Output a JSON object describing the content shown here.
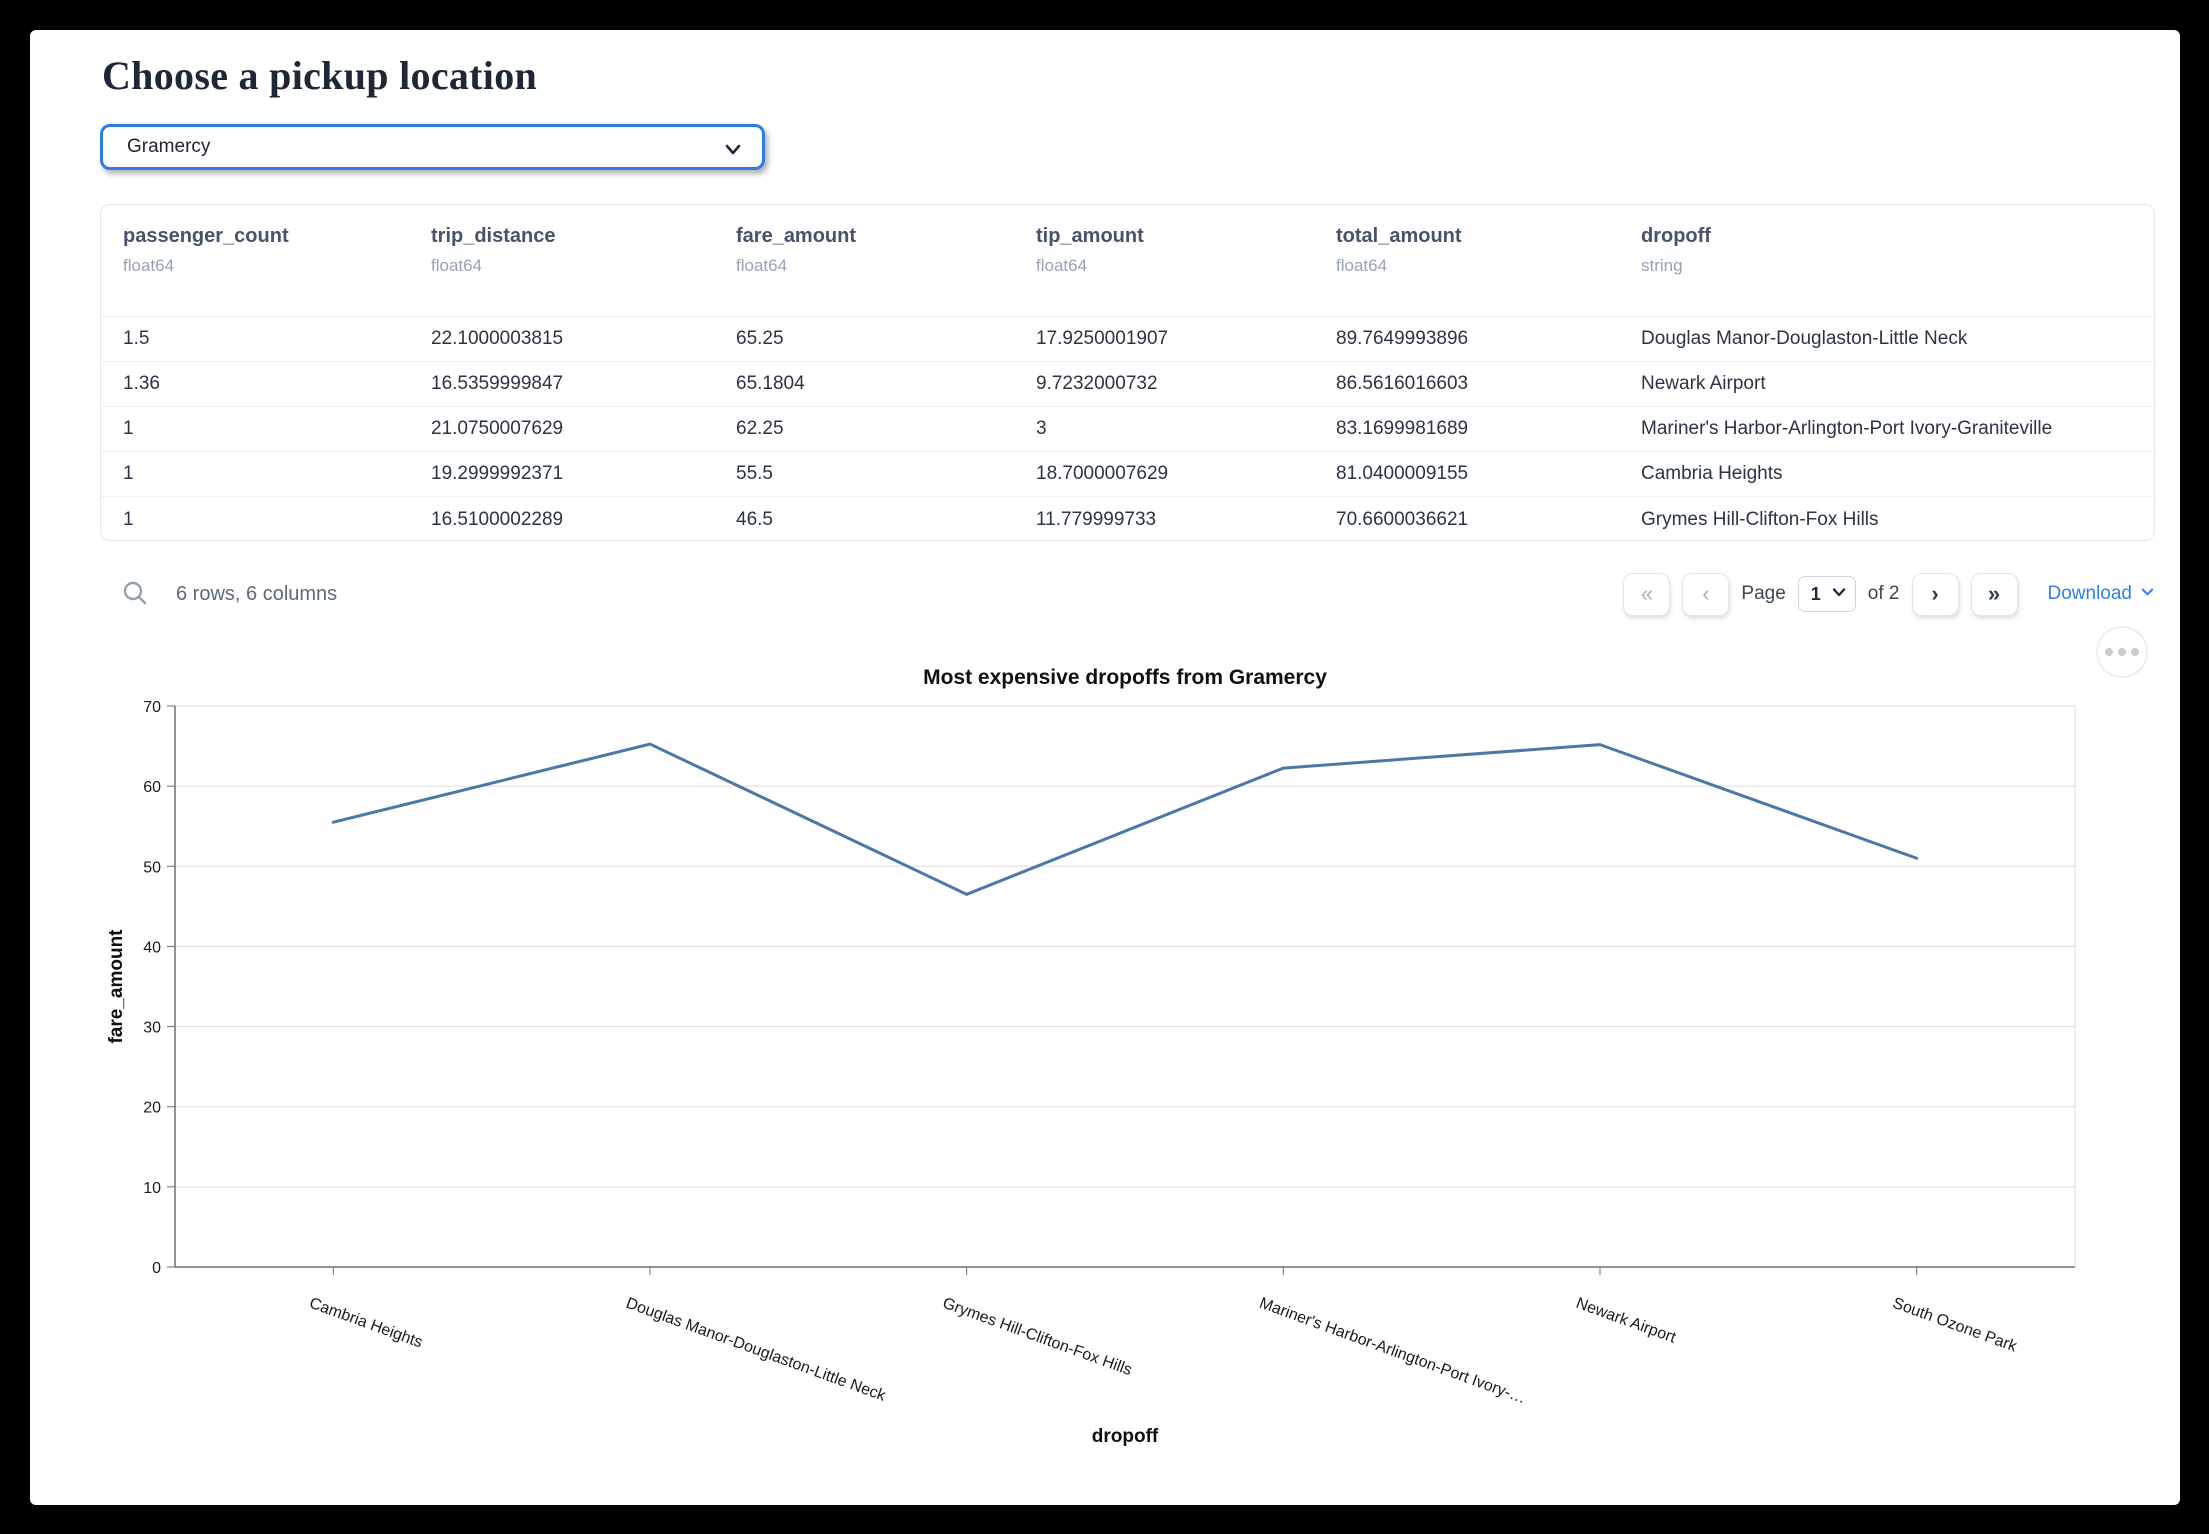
{
  "page": {
    "title": "Choose a pickup location"
  },
  "picker": {
    "value": "Gramercy"
  },
  "colors": {
    "accent_border": "#2e7ce8",
    "link_blue": "#2e7ff0",
    "line_color": "#4c78a8"
  },
  "icons": {
    "search": "magnifier",
    "select_chevron": "chevron-down",
    "first_page_glyph": "«",
    "prev_page_glyph": "‹",
    "next_page_glyph": "›",
    "last_page_glyph": "»",
    "download_chevron": "chevron-down",
    "chart_menu": "ellipsis"
  },
  "table": {
    "columns": [
      {
        "name": "passenger_count",
        "dtype": "float64"
      },
      {
        "name": "trip_distance",
        "dtype": "float64"
      },
      {
        "name": "fare_amount",
        "dtype": "float64"
      },
      {
        "name": "tip_amount",
        "dtype": "float64"
      },
      {
        "name": "total_amount",
        "dtype": "float64"
      },
      {
        "name": "dropoff",
        "dtype": "string"
      }
    ],
    "rows": [
      [
        "1.5",
        "22.1000003815",
        "65.25",
        "17.9250001907",
        "89.7649993896",
        "Douglas Manor-Douglaston-Little Neck"
      ],
      [
        "1.36",
        "16.5359999847",
        "65.1804",
        "9.7232000732",
        "86.5616016603",
        "Newark Airport"
      ],
      [
        "1",
        "21.0750007629",
        "62.25",
        "3",
        "83.1699981689",
        "Mariner's Harbor-Arlington-Port Ivory-Graniteville"
      ],
      [
        "1",
        "19.2999992371",
        "55.5",
        "18.7000007629",
        "81.0400009155",
        "Cambria Heights"
      ],
      [
        "1",
        "16.5100002289",
        "46.5",
        "11.779999733",
        "70.6600036621",
        "Grymes Hill-Clifton-Fox Hills"
      ]
    ],
    "footer": {
      "summary": "6 rows, 6 columns",
      "page_label": "Page",
      "page_value": "1",
      "of_label": "of 2",
      "download_label": "Download"
    }
  },
  "chart_data": {
    "type": "line",
    "title": "Most expensive dropoffs from Gramercy",
    "xlabel": "dropoff",
    "ylabel": "fare_amount",
    "categories": [
      "Cambria Heights",
      "Douglas Manor-Douglaston-Little Neck",
      "Grymes Hill-Clifton-Fox Hills",
      "Mariner's Harbor-Arlington-Port Ivory-Graniteville",
      "Newark Airport",
      "South Ozone Park"
    ],
    "x_tick_labels": [
      "Cambria Heights",
      "Douglas Manor-Douglaston-Little Neck",
      "Grymes Hill-Clifton-Fox Hills",
      "Mariner's Harbor-Arlington-Port Ivory-…",
      "Newark Airport",
      "South Ozone Park"
    ],
    "values": [
      55.5,
      65.25,
      46.5,
      62.25,
      65.1804,
      51
    ],
    "ylim": [
      0,
      70
    ],
    "yticks": [
      0,
      10,
      20,
      30,
      40,
      50,
      60,
      70
    ],
    "grid": true,
    "legend": "none",
    "line_color": "#4c78a8"
  }
}
